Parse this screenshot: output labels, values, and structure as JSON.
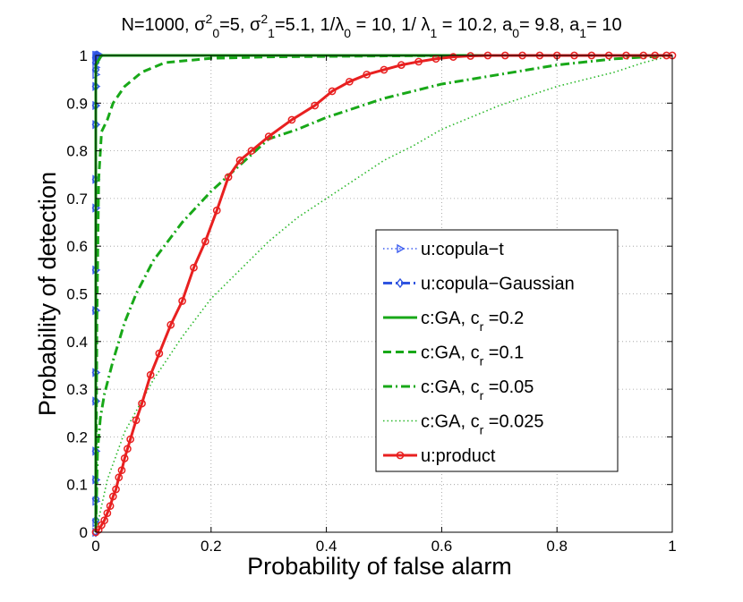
{
  "chart_data": {
    "type": "line",
    "title": "N=1000, σ²₀=5, σ²₁=5.1,  1/λ₀ = 10, 1/ λ₁ = 10.2, a₀= 9.8, a₁= 10",
    "title_parts": [
      {
        "t": "N=1000, σ"
      },
      {
        "t": "2",
        "sup": true
      },
      {
        "t": "0",
        "sub": true
      },
      {
        "t": "=5, σ"
      },
      {
        "t": "2",
        "sup": true
      },
      {
        "t": "1",
        "sub": true
      },
      {
        "t": "=5.1,  1/λ"
      },
      {
        "t": "0",
        "sub": true
      },
      {
        "t": " = 10, 1/ λ"
      },
      {
        "t": "1",
        "sub": true
      },
      {
        "t": " = 10.2, a"
      },
      {
        "t": "0",
        "sub": true
      },
      {
        "t": "= 9.8, a"
      },
      {
        "t": "1",
        "sub": true
      },
      {
        "t": "= 10"
      }
    ],
    "xlabel": "Probability of false alarm",
    "ylabel": "Probability of detection",
    "xlim": [
      0,
      1
    ],
    "ylim": [
      0,
      1
    ],
    "xticks": [
      0,
      0.2,
      0.4,
      0.6,
      0.8,
      1
    ],
    "xtick_labels": [
      "0",
      "0.2",
      "0.4",
      "0.6",
      "0.8",
      "1"
    ],
    "yticks": [
      0,
      0.1,
      0.2,
      0.3,
      0.4,
      0.5,
      0.6,
      0.7,
      0.8,
      0.9,
      1
    ],
    "ytick_labels": [
      "0",
      "0.1",
      "0.2",
      "0.3",
      "0.4",
      "0.5",
      "0.6",
      "0.7",
      "0.8",
      "0.9",
      "1"
    ],
    "grid": true,
    "legend_position": "center-right",
    "series": [
      {
        "name": "u:copula-t",
        "label_parts": [
          {
            "t": "u:copula−t"
          }
        ],
        "color": "#3f5ff0",
        "style": "dotted",
        "marker": "triangle-right",
        "x": [
          0,
          0,
          0,
          0,
          0,
          0,
          0,
          0,
          0,
          0,
          0,
          0,
          0,
          0,
          0,
          0,
          0,
          0,
          0,
          0.002,
          0.004,
          0.008
        ],
        "y": [
          0,
          0.02,
          0.065,
          0.11,
          0.17,
          0.275,
          0.335,
          0.465,
          0.55,
          0.68,
          0.74,
          0.855,
          0.895,
          0.935,
          0.96,
          0.975,
          0.99,
          1.0,
          1.0,
          1.0,
          1.0,
          1.0
        ]
      },
      {
        "name": "u:copula-Gaussian",
        "label_parts": [
          {
            "t": "u:copula−Gaussian"
          }
        ],
        "color": "#2f54e0",
        "style": "dashdot",
        "marker": "diamond",
        "x": [
          0,
          0,
          0,
          0,
          0,
          0,
          0,
          0,
          0,
          0,
          0,
          0,
          0,
          0,
          0,
          0,
          0,
          0.001,
          0.003
        ],
        "y": [
          0,
          0.025,
          0.07,
          0.11,
          0.17,
          0.275,
          0.335,
          0.465,
          0.55,
          0.68,
          0.74,
          0.855,
          0.895,
          0.935,
          0.97,
          0.985,
          0.995,
          1.0,
          1.0
        ]
      },
      {
        "name": "c:GA, c_r =0.2",
        "label_parts": [
          {
            "t": "c:GA, c"
          },
          {
            "t": "r",
            "sub": true
          },
          {
            "t": " =0.2"
          }
        ],
        "color": "#18a818",
        "style": "solid",
        "marker": "none",
        "x": [
          0,
          0,
          0.01,
          1.0
        ],
        "y": [
          0,
          0.98,
          1.0,
          1.0
        ]
      },
      {
        "name": "c:GA, c_r =0.1",
        "label_parts": [
          {
            "t": "c:GA, c"
          },
          {
            "t": "r",
            "sub": true
          },
          {
            "t": " =0.1"
          }
        ],
        "color": "#18a818",
        "style": "dashed",
        "marker": "none",
        "x": [
          0,
          0.002,
          0.005,
          0.01,
          0.02,
          0.03,
          0.05,
          0.08,
          0.12,
          0.2,
          0.3,
          0.5,
          0.7,
          1.0
        ],
        "y": [
          0,
          0.45,
          0.74,
          0.84,
          0.865,
          0.9,
          0.935,
          0.965,
          0.985,
          0.994,
          0.997,
          0.999,
          1.0,
          1.0
        ]
      },
      {
        "name": "c:GA, c_r =0.05",
        "label_parts": [
          {
            "t": "c:GA, c"
          },
          {
            "t": "r",
            "sub": true
          },
          {
            "t": " =0.05"
          }
        ],
        "color": "#18a818",
        "style": "dashdot",
        "marker": "none",
        "x": [
          0,
          0.003,
          0.008,
          0.015,
          0.03,
          0.05,
          0.07,
          0.1,
          0.15,
          0.2,
          0.25,
          0.3,
          0.35,
          0.4,
          0.5,
          0.6,
          0.7,
          0.8,
          0.9,
          1.0
        ],
        "y": [
          0,
          0.17,
          0.24,
          0.29,
          0.36,
          0.44,
          0.5,
          0.57,
          0.65,
          0.715,
          0.77,
          0.825,
          0.845,
          0.87,
          0.91,
          0.94,
          0.96,
          0.98,
          0.993,
          1.0
        ],
        "data_labels": []
      },
      {
        "name": "c:GA, c_r =0.025",
        "label_parts": [
          {
            "t": "c:GA, c"
          },
          {
            "t": "r",
            "sub": true
          },
          {
            "t": " =0.025"
          }
        ],
        "color": "#2ab82a",
        "style": "dotted",
        "marker": "none",
        "x": [
          0,
          0.02,
          0.05,
          0.1,
          0.15,
          0.2,
          0.25,
          0.3,
          0.35,
          0.4,
          0.45,
          0.5,
          0.55,
          0.6,
          0.65,
          0.7,
          0.75,
          0.8,
          0.85,
          0.9,
          0.95,
          1.0
        ],
        "y": [
          0,
          0.11,
          0.21,
          0.32,
          0.41,
          0.49,
          0.55,
          0.61,
          0.66,
          0.7,
          0.74,
          0.78,
          0.81,
          0.845,
          0.87,
          0.895,
          0.915,
          0.935,
          0.95,
          0.965,
          0.985,
          1.0
        ]
      },
      {
        "name": "u:product",
        "label_parts": [
          {
            "t": "u:product"
          }
        ],
        "color": "#e82020",
        "style": "solid",
        "marker": "circle",
        "x": [
          0,
          0.005,
          0.01,
          0.015,
          0.02,
          0.025,
          0.03,
          0.035,
          0.04,
          0.045,
          0.05,
          0.055,
          0.06,
          0.07,
          0.08,
          0.095,
          0.11,
          0.13,
          0.15,
          0.17,
          0.19,
          0.21,
          0.23,
          0.25,
          0.27,
          0.3,
          0.34,
          0.38,
          0.41,
          0.44,
          0.47,
          0.5,
          0.53,
          0.56,
          0.59,
          0.62,
          0.65,
          0.68,
          0.71,
          0.74,
          0.77,
          0.8,
          0.83,
          0.86,
          0.89,
          0.92,
          0.95,
          0.97,
          0.99,
          1.0
        ],
        "y": [
          0,
          0.005,
          0.015,
          0.025,
          0.04,
          0.055,
          0.075,
          0.09,
          0.115,
          0.13,
          0.155,
          0.175,
          0.195,
          0.235,
          0.27,
          0.33,
          0.375,
          0.435,
          0.485,
          0.555,
          0.61,
          0.675,
          0.745,
          0.78,
          0.8,
          0.83,
          0.865,
          0.895,
          0.925,
          0.945,
          0.96,
          0.97,
          0.98,
          0.987,
          0.993,
          0.997,
          0.999,
          1.0,
          1.0,
          1.0,
          1.0,
          1.0,
          1.0,
          1.0,
          1.0,
          1.0,
          1.0,
          1.0,
          1.0,
          1.0
        ]
      }
    ]
  }
}
